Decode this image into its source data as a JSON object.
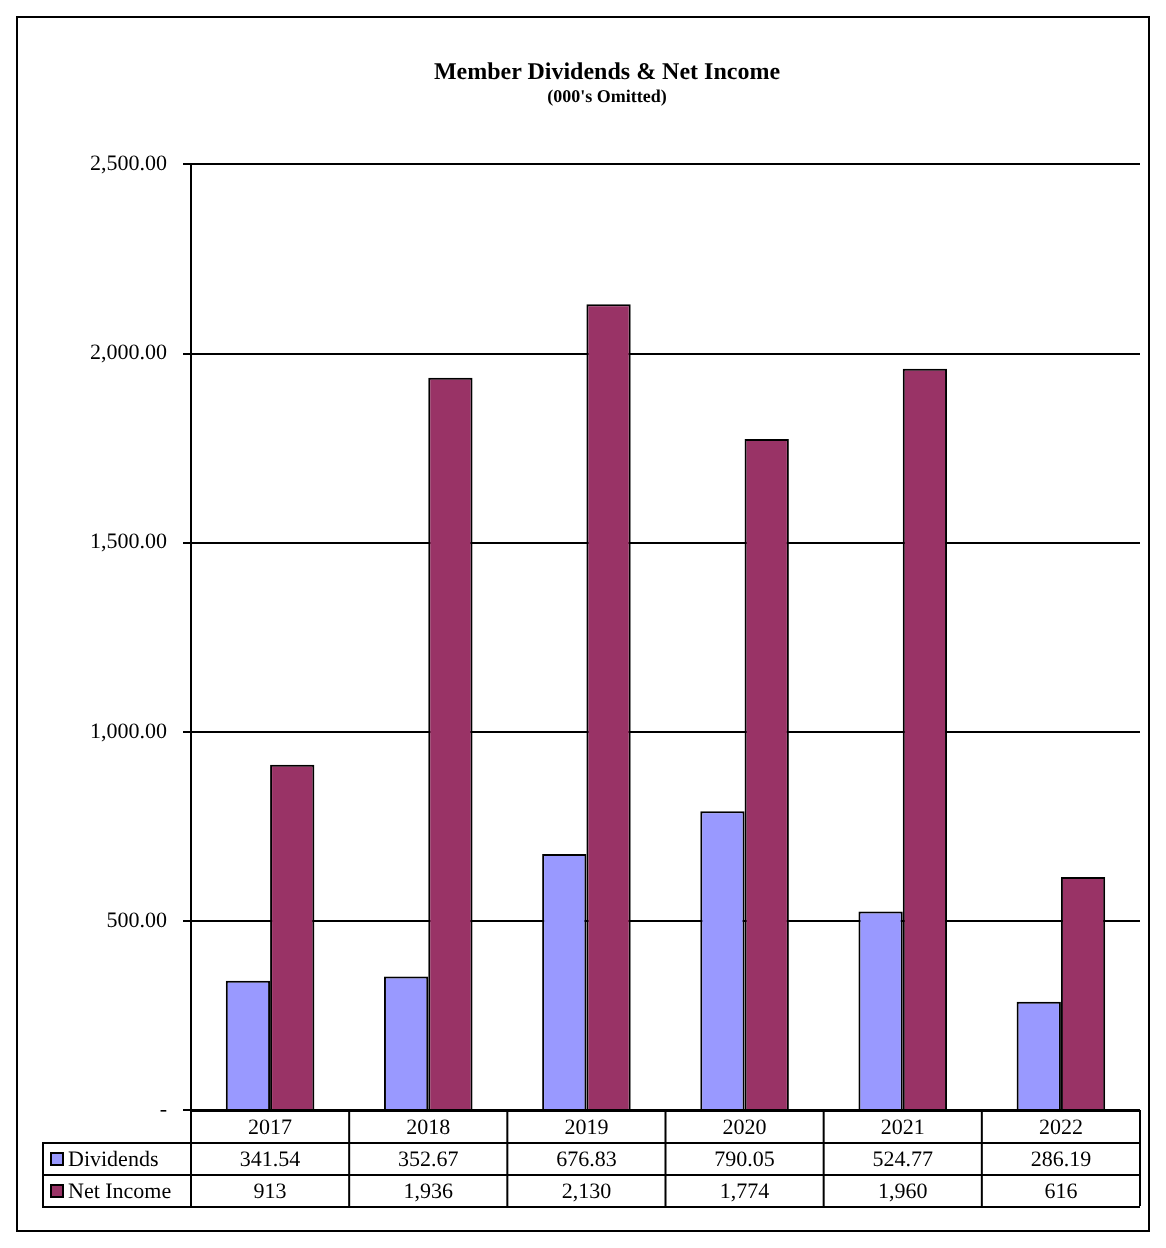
{
  "chart_data": {
    "type": "bar",
    "title": "Member Dividends & Net Income",
    "subtitle": "(000's Omitted)",
    "categories": [
      "2017",
      "2018",
      "2019",
      "2020",
      "2021",
      "2022"
    ],
    "series": [
      {
        "name": "Dividends",
        "color": "#9999ff",
        "values": [
          341.54,
          352.67,
          676.83,
          790.05,
          524.77,
          286.19
        ],
        "value_labels": [
          "341.54",
          "352.67",
          "676.83",
          "790.05",
          "524.77",
          "286.19"
        ]
      },
      {
        "name": "Net Income",
        "color": "#993366",
        "values": [
          913,
          1936,
          2130,
          1774,
          1960,
          616
        ],
        "value_labels": [
          "913",
          "1,936",
          "2,130",
          "1,774",
          "1,960",
          "616"
        ]
      }
    ],
    "ylim": [
      0,
      2500
    ],
    "yticks": [
      {
        "value": 0,
        "label": "-"
      },
      {
        "value": 500,
        "label": "500.00"
      },
      {
        "value": 1000,
        "label": "1,000.00"
      },
      {
        "value": 1500,
        "label": "1,500.00"
      },
      {
        "value": 2000,
        "label": "2,000.00"
      },
      {
        "value": 2500,
        "label": "2,500.00"
      }
    ],
    "grid": "y",
    "legend": "bottom"
  }
}
